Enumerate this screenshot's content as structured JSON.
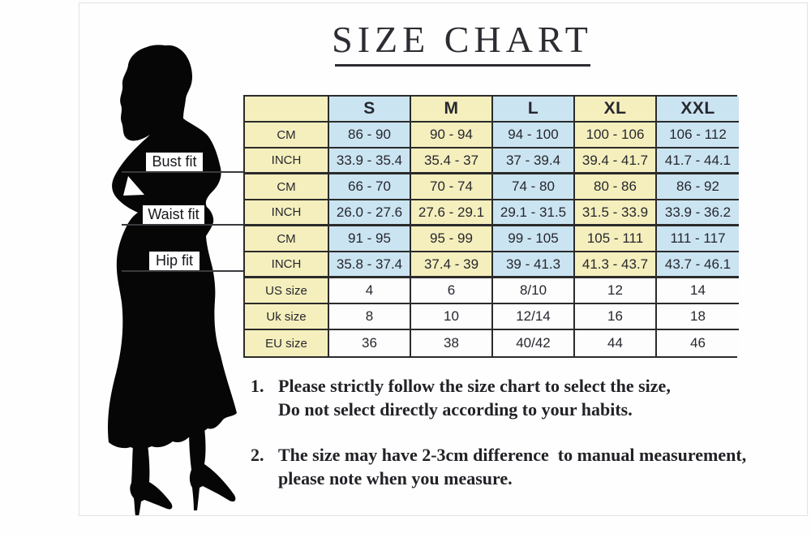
{
  "title": "SIZE CHART",
  "measure_labels": {
    "bust": "Bust fit",
    "waist": "Waist fit",
    "hip": "Hip fit"
  },
  "size_table": {
    "columns": [
      "",
      "S",
      "M",
      "L",
      "XL",
      "XXL"
    ],
    "rows": [
      {
        "group": "bust",
        "label": "CM",
        "values": [
          "86 - 90",
          "90 - 94",
          "94 - 100",
          "100 - 106",
          "106 - 112"
        ]
      },
      {
        "group": "bust",
        "label": "INCH",
        "values": [
          "33.9 - 35.4",
          "35.4 - 37",
          "37 - 39.4",
          "39.4 - 41.7",
          "41.7 - 44.1"
        ]
      },
      {
        "group": "waist",
        "label": "CM",
        "values": [
          "66 - 70",
          "70 - 74",
          "74 - 80",
          "80 - 86",
          "86 - 92"
        ]
      },
      {
        "group": "waist",
        "label": "INCH",
        "values": [
          "26.0 - 27.6",
          "27.6 - 29.1",
          "29.1 - 31.5",
          "31.5 - 33.9",
          "33.9 - 36.2"
        ]
      },
      {
        "group": "hip",
        "label": "CM",
        "values": [
          "91 - 95",
          "95 - 99",
          "99 - 105",
          "105 - 111",
          "111 - 117"
        ]
      },
      {
        "group": "hip",
        "label": "INCH",
        "values": [
          "35.8 - 37.4",
          "37.4 - 39",
          "39 - 41.3",
          "41.3 - 43.7",
          "43.7 - 46.1"
        ]
      },
      {
        "group": "sizes",
        "label": "US size",
        "values": [
          "4",
          "6",
          "8/10",
          "12",
          "14"
        ]
      },
      {
        "group": "sizes",
        "label": "Uk size",
        "values": [
          "8",
          "10",
          "12/14",
          "16",
          "18"
        ]
      },
      {
        "group": "sizes",
        "label": "EU size",
        "values": [
          "36",
          "38",
          "40/42",
          "44",
          "46"
        ]
      }
    ]
  },
  "notes": [
    {
      "number": "1.",
      "lines": [
        "Please strictly follow the size chart to select the size,",
        "Do not select directly according to your habits."
      ]
    },
    {
      "number": "2.",
      "lines": [
        "The size may have 2-3cm difference  to manual measurement,",
        "please note when you measure."
      ]
    }
  ],
  "colors": {
    "cell_yellow": "#f5efbd",
    "cell_blue": "#cbe4f1",
    "cell_white": "#fdfdfd",
    "table_border": "#2b2b2b",
    "text_dark": "#26272e",
    "title_dark": "#2c2c33",
    "silhouette_black": "#060606",
    "pointer_line": "#3a3a3e"
  }
}
